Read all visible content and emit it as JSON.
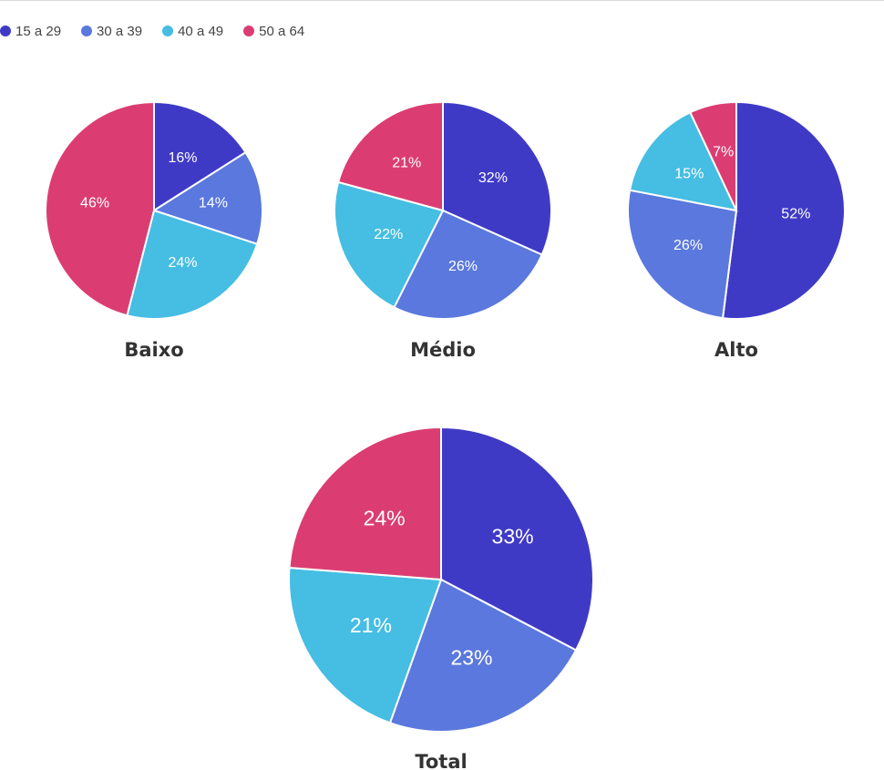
{
  "colors": {
    "15_29": "#3f3ac6",
    "30_39": "#5a78dd",
    "40_49": "#46bde2",
    "50_64": "#db3d72"
  },
  "legend": [
    {
      "label": "15 a 29",
      "color": "#3f3ac6"
    },
    {
      "label": "30 a 39",
      "color": "#5a78dd"
    },
    {
      "label": "40 a 49",
      "color": "#46bde2"
    },
    {
      "label": "50 a 64",
      "color": "#db3d72"
    }
  ],
  "chart_data": [
    {
      "type": "pie",
      "title": "Baixo",
      "categories": [
        "15 a 29",
        "30 a 39",
        "40 a 49",
        "50 a 64"
      ],
      "values": [
        16,
        14,
        24,
        46
      ],
      "labels": [
        "16%",
        "14%",
        "24%",
        "46%"
      ]
    },
    {
      "type": "pie",
      "title": "Médio",
      "categories": [
        "15 a 29",
        "30 a 39",
        "40 a 49",
        "50 a 64"
      ],
      "values": [
        32,
        26,
        22,
        21
      ],
      "labels": [
        "32%",
        "26%",
        "22%",
        "21%"
      ]
    },
    {
      "type": "pie",
      "title": "Alto",
      "categories": [
        "15 a 29",
        "30 a 39",
        "40 a 49",
        "50 a 64"
      ],
      "values": [
        52,
        26,
        15,
        7
      ],
      "labels": [
        "52%",
        "26%",
        "15%",
        "7%"
      ]
    },
    {
      "type": "pie",
      "title": "Total",
      "categories": [
        "15 a 29",
        "30 a 39",
        "40 a 49",
        "50 a 64"
      ],
      "values": [
        33,
        23,
        21,
        24
      ],
      "labels": [
        "33%",
        "23%",
        "21%",
        "24%"
      ]
    }
  ]
}
